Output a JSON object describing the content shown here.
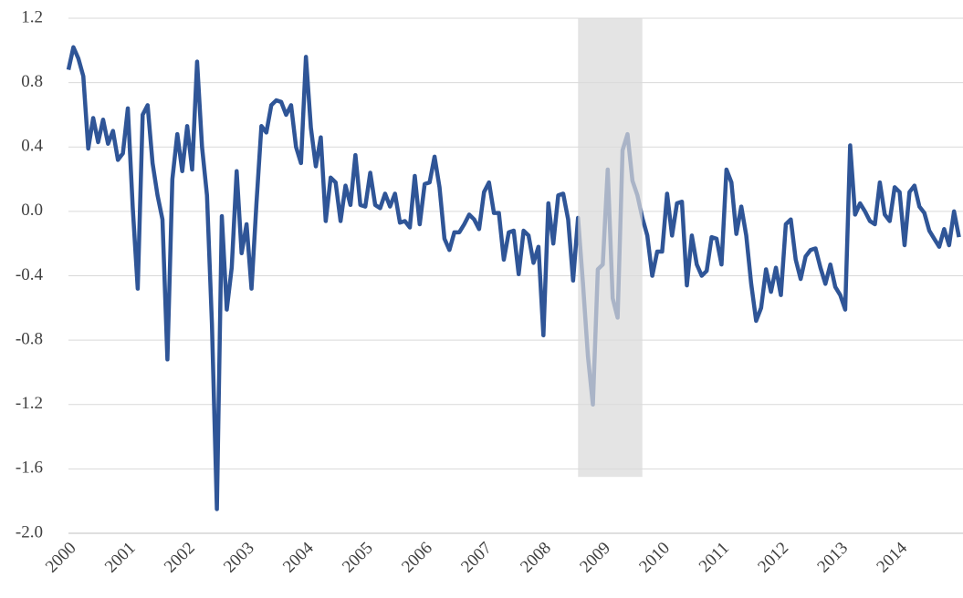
{
  "chart_data": {
    "type": "line",
    "categories": [
      "2000",
      null,
      null,
      null,
      null,
      null,
      null,
      null,
      null,
      null,
      null,
      null,
      "2001",
      null,
      null,
      null,
      null,
      null,
      null,
      null,
      null,
      null,
      null,
      null,
      "2002",
      null,
      null,
      null,
      null,
      null,
      null,
      null,
      null,
      null,
      null,
      null,
      "2003",
      null,
      null,
      null,
      null,
      null,
      null,
      null,
      null,
      null,
      null,
      null,
      "2004",
      null,
      null,
      null,
      null,
      null,
      null,
      null,
      null,
      null,
      null,
      null,
      "2005",
      null,
      null,
      null,
      null,
      null,
      null,
      null,
      null,
      null,
      null,
      null,
      "2006",
      null,
      null,
      null,
      null,
      null,
      null,
      null,
      null,
      null,
      null,
      null,
      "2007",
      null,
      null,
      null,
      null,
      null,
      null,
      null,
      null,
      null,
      null,
      null,
      "2008",
      null,
      null,
      null,
      null,
      null,
      null,
      null,
      null,
      null,
      null,
      null,
      "2009",
      null,
      null,
      null,
      null,
      null,
      null,
      null,
      null,
      null,
      null,
      null,
      "2010",
      null,
      null,
      null,
      null,
      null,
      null,
      null,
      null,
      null,
      null,
      null,
      "2011",
      null,
      null,
      null,
      null,
      null,
      null,
      null,
      null,
      null,
      null,
      null,
      "2012",
      null,
      null,
      null,
      null,
      null,
      null,
      null,
      null,
      null,
      null,
      null,
      "2013",
      null,
      null,
      null,
      null,
      null,
      null,
      null,
      null,
      null,
      null,
      null,
      "2014",
      null,
      null,
      null,
      null,
      null,
      null,
      null,
      null,
      null,
      null,
      null,
      null
    ],
    "series": [
      {
        "color": "#2f5597",
        "values": [
          0.88,
          1.02,
          0.95,
          0.84,
          0.39,
          0.58,
          0.43,
          0.57,
          0.42,
          0.5,
          0.32,
          0.36,
          0.64,
          0.02,
          -0.48,
          0.6,
          0.66,
          0.3,
          0.1,
          -0.05,
          -0.92,
          0.2,
          0.48,
          0.25,
          0.53,
          0.26,
          0.93,
          0.4,
          0.1,
          -0.7,
          -1.85,
          -0.03,
          -0.61,
          -0.35,
          0.25,
          -0.26,
          -0.08,
          -0.48,
          0.05,
          0.53,
          0.49,
          0.66,
          0.69,
          0.68,
          0.6,
          0.66,
          0.4,
          0.3,
          0.96,
          0.52,
          0.28,
          0.46,
          -0.06,
          0.21,
          0.18,
          -0.06,
          0.16,
          0.04,
          0.35,
          0.04,
          0.03,
          0.24,
          0.04,
          0.02,
          0.11,
          0.03,
          0.11,
          -0.07,
          -0.06,
          -0.1,
          0.22,
          -0.08,
          0.17,
          0.18,
          0.34,
          0.15,
          -0.17,
          -0.24,
          -0.13,
          -0.13,
          -0.08,
          -0.02,
          -0.05,
          -0.11,
          0.12,
          0.18,
          -0.01,
          -0.01,
          -0.3,
          -0.13,
          -0.12,
          -0.39,
          -0.12,
          -0.15,
          -0.32,
          -0.22,
          -0.77,
          0.05,
          -0.2,
          0.1,
          0.11,
          -0.05,
          -0.43,
          -0.04,
          -0.45,
          -0.9,
          -1.2,
          -0.36,
          -0.33,
          0.26,
          -0.54,
          -0.66,
          0.38,
          0.48,
          0.19,
          0.1,
          -0.04,
          -0.15,
          -0.4,
          -0.25,
          -0.25,
          0.11,
          -0.15,
          0.05,
          0.06,
          -0.46,
          -0.15,
          -0.33,
          -0.4,
          -0.37,
          -0.16,
          -0.17,
          -0.33,
          0.26,
          0.18,
          -0.14,
          0.03,
          -0.15,
          -0.45,
          -0.68,
          -0.6,
          -0.36,
          -0.5,
          -0.35,
          -0.52,
          -0.08,
          -0.05,
          -0.3,
          -0.42,
          -0.28,
          -0.24,
          -0.23,
          -0.35,
          -0.45,
          -0.33,
          -0.47,
          -0.52,
          -0.61,
          0.41,
          -0.02,
          0.05,
          0.0,
          -0.06,
          -0.08,
          0.18,
          -0.02,
          -0.06,
          0.15,
          0.12,
          -0.21,
          0.12,
          0.16,
          0.03,
          -0.01,
          -0.12,
          -0.17,
          -0.22,
          -0.11,
          -0.21,
          0.0,
          -0.16
        ]
      }
    ],
    "ylim": [
      -2.0,
      1.2
    ],
    "yticks": [
      {
        "value": -2.0,
        "label": "-2.0"
      },
      -1.6,
      -1.2,
      -0.8,
      -0.4,
      {
        "value": 0,
        "label": "0.0"
      },
      0.4,
      0.8,
      1.2
    ],
    "grid": true,
    "shaded_region": {
      "start": 103,
      "end": 116,
      "bottom": -1.65,
      "color": "#d9d9d9"
    }
  }
}
